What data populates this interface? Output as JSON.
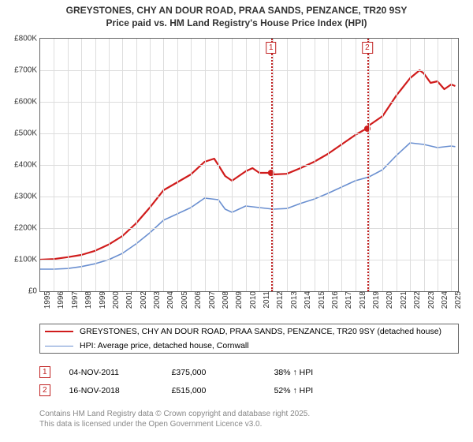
{
  "title_line1": "GREYSTONES, CHY AN DOUR ROAD, PRAA SANDS, PENZANCE, TR20 9SY",
  "title_line2": "Price paid vs. HM Land Registry's House Price Index (HPI)",
  "chart": {
    "type": "line",
    "background_color": "#ffffff",
    "grid_color": "#dddddd",
    "axis_color": "#666666",
    "font_size": 10,
    "xlim": [
      1995,
      2025.5
    ],
    "ylim": [
      0,
      800000
    ],
    "xtick_step": 1,
    "ytick_step": 100000,
    "xticks": [
      1995,
      1996,
      1997,
      1998,
      1999,
      2000,
      2001,
      2002,
      2003,
      2004,
      2005,
      2006,
      2007,
      2008,
      2009,
      2010,
      2011,
      2012,
      2013,
      2014,
      2015,
      2016,
      2017,
      2018,
      2019,
      2020,
      2021,
      2022,
      2023,
      2024,
      2025
    ],
    "yticks": [
      0,
      100000,
      200000,
      300000,
      400000,
      500000,
      600000,
      700000,
      800000
    ],
    "ytick_labels": [
      "£0",
      "£100K",
      "£200K",
      "£300K",
      "£400K",
      "£500K",
      "£600K",
      "£700K",
      "£800K"
    ],
    "series": {
      "red": {
        "label": "GREYSTONES, CHY AN DOUR ROAD, PRAA SANDS, PENZANCE, TR20 9SY (detached house)",
        "color": "#d01c1c",
        "line_width": 2.2,
        "data": [
          [
            1995,
            100000
          ],
          [
            1996,
            102000
          ],
          [
            1997,
            108000
          ],
          [
            1998,
            115000
          ],
          [
            1999,
            128000
          ],
          [
            2000,
            148000
          ],
          [
            2001,
            175000
          ],
          [
            2002,
            215000
          ],
          [
            2003,
            265000
          ],
          [
            2004,
            320000
          ],
          [
            2005,
            345000
          ],
          [
            2006,
            370000
          ],
          [
            2007,
            410000
          ],
          [
            2007.7,
            420000
          ],
          [
            2008,
            400000
          ],
          [
            2008.5,
            365000
          ],
          [
            2009,
            350000
          ],
          [
            2010,
            380000
          ],
          [
            2010.5,
            390000
          ],
          [
            2011,
            375000
          ],
          [
            2011.85,
            375000
          ],
          [
            2012,
            370000
          ],
          [
            2013,
            372000
          ],
          [
            2014,
            390000
          ],
          [
            2015,
            410000
          ],
          [
            2016,
            435000
          ],
          [
            2017,
            465000
          ],
          [
            2018,
            495000
          ],
          [
            2018.6,
            510000
          ],
          [
            2018.88,
            515000
          ],
          [
            2019,
            525000
          ],
          [
            2020,
            555000
          ],
          [
            2021,
            620000
          ],
          [
            2022,
            675000
          ],
          [
            2022.7,
            700000
          ],
          [
            2023,
            690000
          ],
          [
            2023.5,
            660000
          ],
          [
            2024,
            665000
          ],
          [
            2024.5,
            640000
          ],
          [
            2025,
            655000
          ],
          [
            2025.3,
            650000
          ]
        ]
      },
      "blue": {
        "label": "HPI: Average price, detached house, Cornwall",
        "color": "#6a8fd0",
        "line_width": 1.6,
        "data": [
          [
            1995,
            70000
          ],
          [
            1996,
            70000
          ],
          [
            1997,
            72000
          ],
          [
            1998,
            78000
          ],
          [
            1999,
            87000
          ],
          [
            2000,
            100000
          ],
          [
            2001,
            120000
          ],
          [
            2002,
            150000
          ],
          [
            2003,
            185000
          ],
          [
            2004,
            225000
          ],
          [
            2005,
            245000
          ],
          [
            2006,
            265000
          ],
          [
            2007,
            295000
          ],
          [
            2008,
            290000
          ],
          [
            2008.5,
            260000
          ],
          [
            2009,
            250000
          ],
          [
            2010,
            270000
          ],
          [
            2011,
            265000
          ],
          [
            2012,
            260000
          ],
          [
            2013,
            262000
          ],
          [
            2014,
            278000
          ],
          [
            2015,
            292000
          ],
          [
            2016,
            310000
          ],
          [
            2017,
            330000
          ],
          [
            2018,
            350000
          ],
          [
            2019,
            362000
          ],
          [
            2020,
            385000
          ],
          [
            2021,
            430000
          ],
          [
            2022,
            470000
          ],
          [
            2023,
            465000
          ],
          [
            2024,
            455000
          ],
          [
            2025,
            460000
          ],
          [
            2025.3,
            458000
          ]
        ]
      }
    },
    "markers": [
      {
        "n": "1",
        "x": 2011.85,
        "y": 375000,
        "color": "#c02020"
      },
      {
        "n": "2",
        "x": 2018.88,
        "y": 515000,
        "color": "#c02020"
      }
    ]
  },
  "legend": {
    "border_color": "#666666"
  },
  "sales": [
    {
      "n": "1",
      "date": "04-NOV-2011",
      "price": "£375,000",
      "vs_hpi": "38% ↑ HPI"
    },
    {
      "n": "2",
      "date": "16-NOV-2018",
      "price": "£515,000",
      "vs_hpi": "52% ↑ HPI"
    }
  ],
  "footnote_line1": "Contains HM Land Registry data © Crown copyright and database right 2025.",
  "footnote_line2": "This data is licensed under the Open Government Licence v3.0."
}
